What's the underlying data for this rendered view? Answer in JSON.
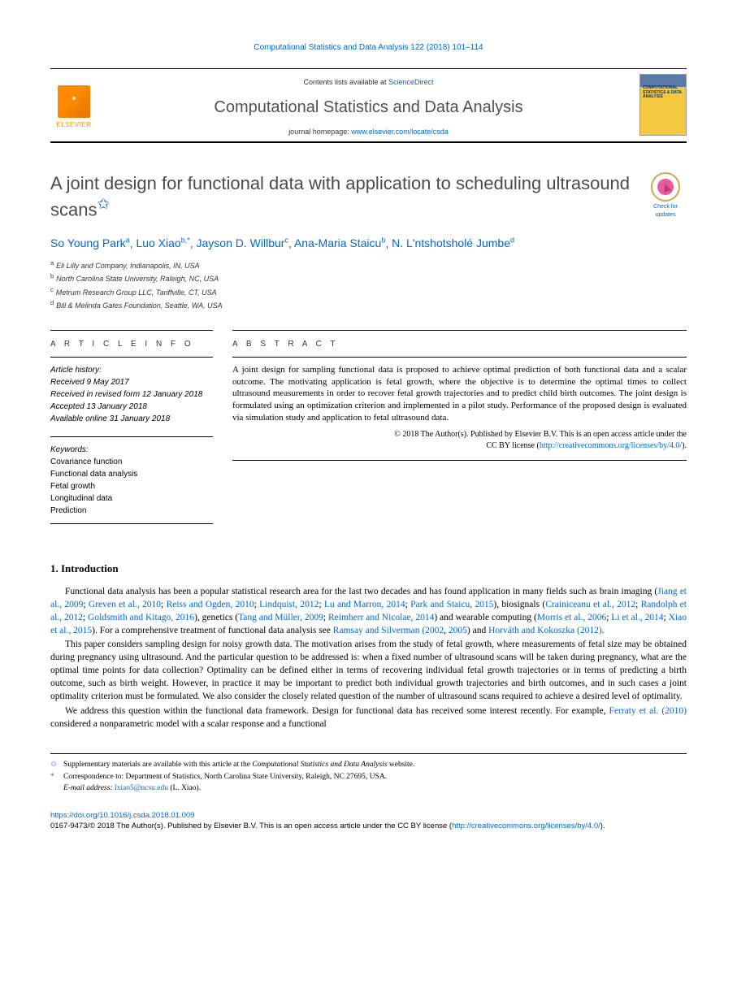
{
  "header": {
    "citation": "Computational Statistics and Data Analysis 122 (2018) 101–114",
    "contents_prefix": "Contents lists available at ",
    "contents_link": "ScienceDirect",
    "journal_name": "Computational Statistics and Data Analysis",
    "homepage_prefix": "journal homepage: ",
    "homepage_url": "www.elsevier.com/locate/csda",
    "publisher_label": "ELSEVIER",
    "cover_text": "COMPUTATIONAL STATISTICS & DATA ANALYSIS"
  },
  "updates_badge": {
    "label": "Check for updates"
  },
  "title": {
    "text": "A joint design for functional data with application to scheduling ultrasound scans",
    "star": "✩"
  },
  "authors": [
    {
      "name": "So Young Park",
      "sup": "a"
    },
    {
      "name": "Luo Xiao",
      "sup": "b,*"
    },
    {
      "name": "Jayson D. Willbur",
      "sup": "c"
    },
    {
      "name": "Ana-Maria Staicu",
      "sup": "b"
    },
    {
      "name": "N. L'ntshotsholé Jumbe",
      "sup": "d"
    }
  ],
  "affiliations": [
    {
      "sup": "a",
      "text": "Eli Lilly and Company, Indianapolis, IN, USA"
    },
    {
      "sup": "b",
      "text": "North Carolina State University, Raleigh, NC, USA"
    },
    {
      "sup": "c",
      "text": "Metrum Research Group LLC, Tariffville, CT, USA"
    },
    {
      "sup": "d",
      "text": "Bill & Melinda Gates Foundation, Seattle, WA, USA"
    }
  ],
  "article_info": {
    "heading": "A R T I C L E   I N F O",
    "history_label": "Article history:",
    "history": [
      "Received 9 May 2017",
      "Received in revised form 12 January 2018",
      "Accepted 13 January 2018",
      "Available online 31 January 2018"
    ],
    "keywords_label": "Keywords:",
    "keywords": [
      "Covariance function",
      "Functional data analysis",
      "Fetal growth",
      "Longitudinal data",
      "Prediction"
    ]
  },
  "abstract": {
    "heading": "A B S T R A C T",
    "text": "A joint design for sampling functional data is proposed to achieve optimal prediction of both functional data and a scalar outcome. The motivating application is fetal growth, where the objective is to determine the optimal times to collect ultrasound measurements in order to recover fetal growth trajectories and to predict child birth outcomes. The joint design is formulated using an optimization criterion and implemented in a pilot study. Performance of the proposed design is evaluated via simulation study and application to fetal ultrasound data.",
    "copyright_line1": "© 2018 The Author(s). Published by Elsevier B.V. This is an open access article under the",
    "copyright_line2_prefix": "CC BY license (",
    "copyright_link": "http://creativecommons.org/licenses/by/4.0/",
    "copyright_line2_suffix": ")."
  },
  "section": {
    "number": "1.",
    "title": "Introduction"
  },
  "paragraphs": {
    "p1_a": "Functional data analysis has been a popular statistical research area for the last two decades and has found application in many fields such as brain imaging (",
    "p1_c1": "Jiang et al., 2009",
    "p1_s1": "; ",
    "p1_c2": "Greven et al., 2010",
    "p1_s2": "; ",
    "p1_c3": "Reiss and Ogden, 2010",
    "p1_s3": "; ",
    "p1_c4": "Lindquist, 2012",
    "p1_s4": "; ",
    "p1_c5": "Lu and Marron, 2014",
    "p1_s5": "; ",
    "p1_c6": "Park and Staicu, 2015",
    "p1_b": "), biosignals (",
    "p1_c7": "Crainiceanu et al., 2012",
    "p1_s7": "; ",
    "p1_c8": "Randolph et al., 2012",
    "p1_s8": "; ",
    "p1_c9": "Goldsmith and Kitago, 2016",
    "p1_c": "), genetics (",
    "p1_c10": "Tang and Müller, 2009",
    "p1_s10": "; ",
    "p1_c11": "Reimherr and Nicolae, 2014",
    "p1_d": ") and wearable computing (",
    "p1_c12": "Morris et al., 2006",
    "p1_s12": "; ",
    "p1_c13": "Li et al., 2014",
    "p1_s13": "; ",
    "p1_c14": "Xiao et al., 2015",
    "p1_e": "). For a comprehensive treatment of functional data analysis see ",
    "p1_c15": "Ramsay and Silverman (2002",
    "p1_s15": ", ",
    "p1_c16": "2005",
    "p1_f": ") and ",
    "p1_c17": "Horváth and Kokoszka (2012)",
    "p1_g": ".",
    "p2": "This paper considers sampling design for noisy growth data. The motivation arises from the study of fetal growth, where measurements of fetal size may be obtained during pregnancy using ultrasound. And the particular question to be addressed is: when a fixed number of ultrasound scans will be taken during pregnancy, what are the optimal time points for data collection? Optimality can be defined either in terms of recovering individual fetal growth trajectories or in terms of predicting a birth outcome, such as birth weight. However, in practice it may be important to predict both individual growth trajectories and birth outcomes, and in such cases a joint optimality criterion must be formulated. We also consider the closely related question of the number of ultrasound scans required to achieve a desired level of optimality.",
    "p3_a": "We address this question within the functional data framework. Design for functional data has received some interest recently. For example, ",
    "p3_c1": "Ferraty et al. (2010)",
    "p3_b": " considered a nonparametric model with a scalar response and a functional"
  },
  "footnotes": {
    "f1_mark": "✩",
    "f1_a": "Supplementary materials are available with this article at the ",
    "f1_em": "Computational Statistics and Data Analysis",
    "f1_b": " website.",
    "f2_mark": "*",
    "f2": "Correspondence to: Department of Statistics, North Carolina State University, Raleigh, NC 27695, USA.",
    "f3_label": "E-mail address: ",
    "f3_email": "lxiao5@ncsu.edu",
    "f3_tail": " (L. Xiao)."
  },
  "footer": {
    "doi": "https://doi.org/10.1016/j.csda.2018.01.009",
    "issn_line_a": "0167-9473/© 2018 The Author(s). Published by Elsevier B.V. This is an open access article under the CC BY license (",
    "issn_link": "http://creativecommons.org/licenses/by/4.0/",
    "issn_line_b": ")."
  },
  "colors": {
    "link": "#0066cc",
    "elsevier_orange": "#ff8c00",
    "title_gray": "#4a4a4a",
    "text": "#000000"
  }
}
